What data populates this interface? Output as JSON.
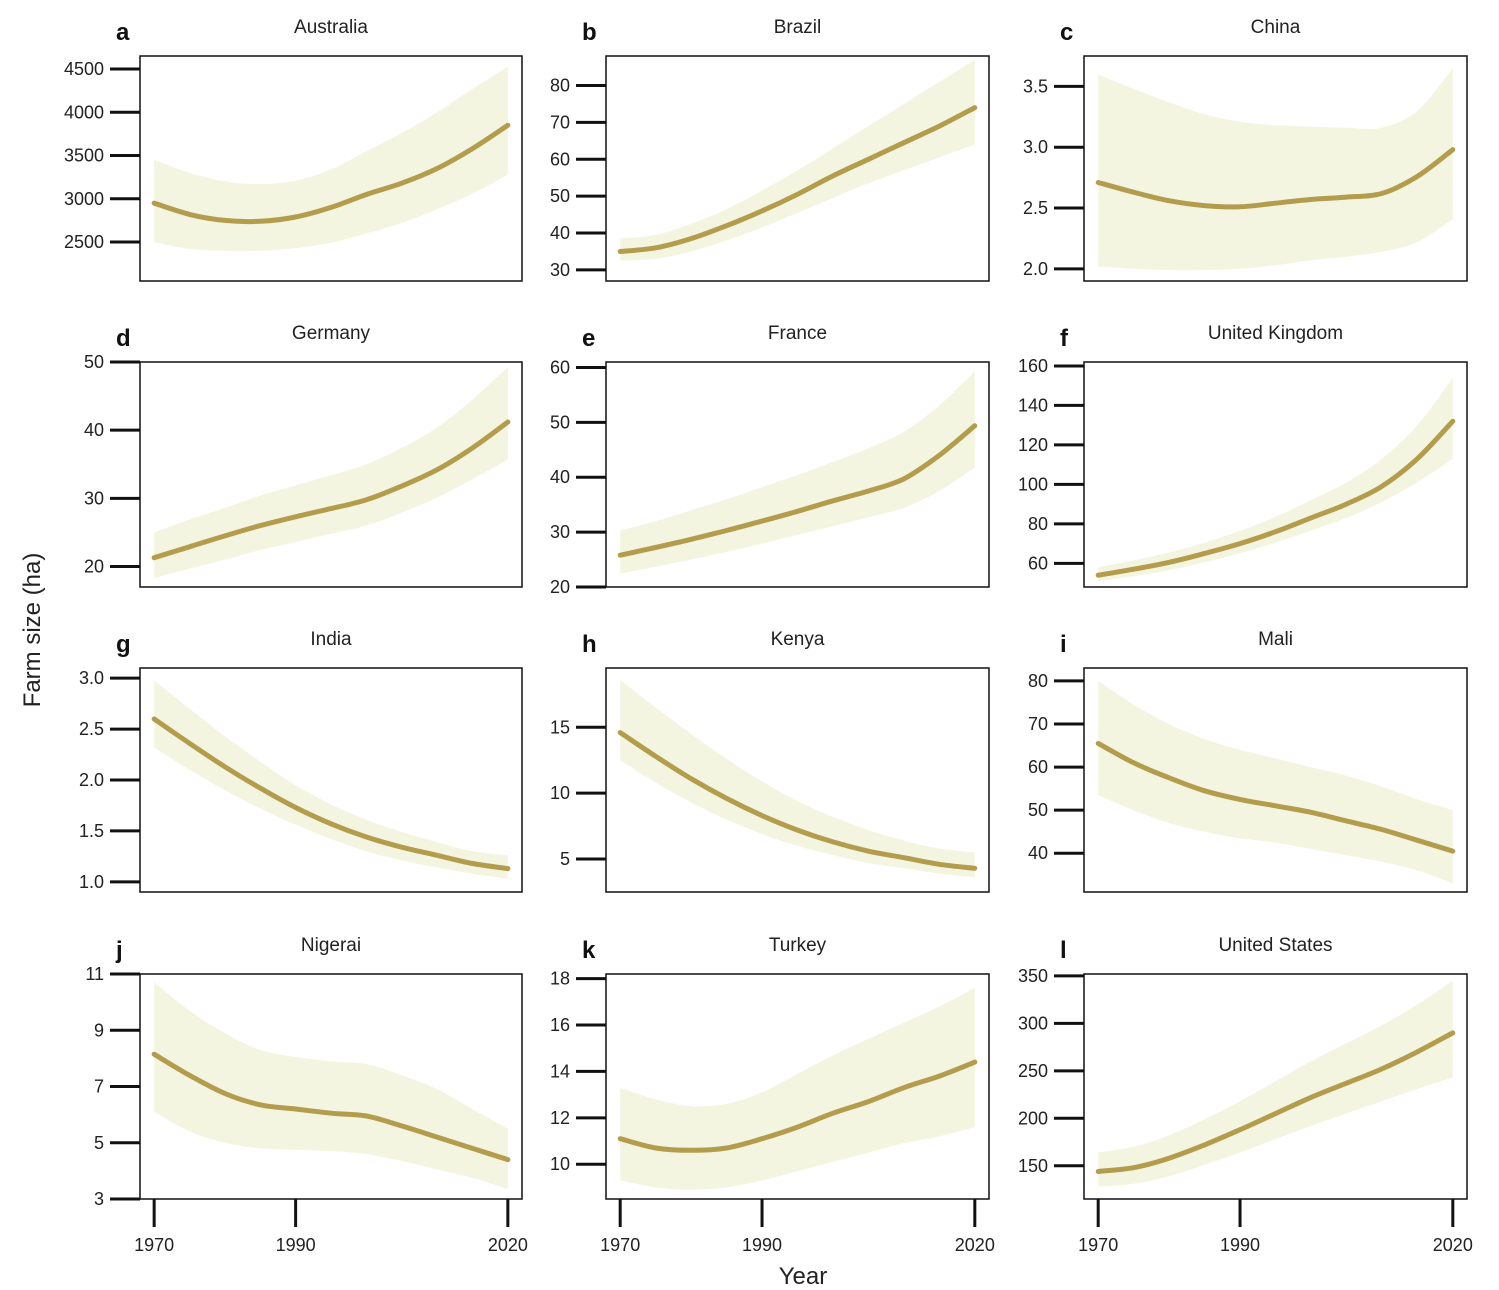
{
  "figure": {
    "ylabel": "Farm size (ha)",
    "xlabel": "Year"
  },
  "colors": {
    "line": "#b39d4d",
    "band": "#f4f5e1",
    "axis": "#111111"
  },
  "chart_data": [
    {
      "letter": "a",
      "title": "Australia",
      "type": "line",
      "xlabel": "",
      "ylabel": "",
      "x_ticks": [],
      "y_ticks": [
        2500,
        3000,
        3500,
        4000,
        4500
      ],
      "ylim": [
        2050,
        4650
      ],
      "xlim": [
        1968,
        2022
      ],
      "x": [
        1970,
        1975,
        1980,
        1985,
        1990,
        1995,
        2000,
        2005,
        2010,
        2015,
        2020
      ],
      "values": [
        2950,
        2820,
        2750,
        2740,
        2790,
        2900,
        3050,
        3180,
        3350,
        3580,
        3850
      ],
      "lower": [
        2500,
        2420,
        2400,
        2400,
        2430,
        2490,
        2600,
        2720,
        2880,
        3060,
        3280
      ],
      "upper": [
        3450,
        3300,
        3200,
        3170,
        3210,
        3340,
        3550,
        3760,
        4000,
        4270,
        4530
      ]
    },
    {
      "letter": "b",
      "title": "Brazil",
      "type": "line",
      "xlabel": "",
      "ylabel": "",
      "x_ticks": [],
      "y_ticks": [
        30,
        40,
        50,
        60,
        70,
        80
      ],
      "ylim": [
        27,
        88
      ],
      "xlim": [
        1968,
        2022
      ],
      "x": [
        1970,
        1975,
        1980,
        1985,
        1990,
        1995,
        2000,
        2005,
        2010,
        2015,
        2020
      ],
      "values": [
        35,
        36,
        38.5,
        42,
        46,
        50.5,
        55.5,
        60,
        64.5,
        69,
        74
      ],
      "lower": [
        32.5,
        33,
        35,
        38,
        41.5,
        45.5,
        49.5,
        53.5,
        57,
        60.5,
        64
      ],
      "upper": [
        38.5,
        39.5,
        42.5,
        46.5,
        51.5,
        57,
        63,
        69,
        75,
        81,
        87
      ]
    },
    {
      "letter": "c",
      "title": "China",
      "type": "line",
      "xlabel": "",
      "ylabel": "",
      "x_ticks": [],
      "y_ticks": [
        2.0,
        2.5,
        3.0,
        3.5
      ],
      "ylim": [
        1.9,
        3.75
      ],
      "xlim": [
        1968,
        2022
      ],
      "x": [
        1970,
        1975,
        1980,
        1985,
        1990,
        1995,
        2000,
        2005,
        2010,
        2015,
        2020
      ],
      "values": [
        2.71,
        2.63,
        2.56,
        2.52,
        2.51,
        2.54,
        2.57,
        2.59,
        2.62,
        2.76,
        2.98
      ],
      "lower": [
        2.02,
        2.0,
        1.99,
        1.99,
        2.0,
        2.03,
        2.07,
        2.1,
        2.14,
        2.22,
        2.41
      ],
      "upper": [
        3.6,
        3.48,
        3.37,
        3.27,
        3.21,
        3.18,
        3.17,
        3.16,
        3.16,
        3.3,
        3.65
      ]
    },
    {
      "letter": "d",
      "title": "Germany",
      "type": "line",
      "xlabel": "",
      "ylabel": "",
      "x_ticks": [],
      "y_ticks": [
        20,
        30,
        40,
        50
      ],
      "ylim": [
        17,
        50
      ],
      "xlim": [
        1968,
        2022
      ],
      "x": [
        1970,
        1975,
        1980,
        1985,
        1990,
        1995,
        2000,
        2005,
        2010,
        2015,
        2020
      ],
      "values": [
        21.3,
        22.9,
        24.5,
        26,
        27.3,
        28.5,
        29.8,
        31.8,
        34.2,
        37.4,
        41.2
      ],
      "lower": [
        18.3,
        19.7,
        21,
        22.4,
        23.6,
        24.8,
        26,
        27.9,
        30.1,
        32.8,
        35.7
      ],
      "upper": [
        25,
        26.9,
        28.6,
        30.4,
        31.9,
        33.4,
        35,
        37.4,
        40.4,
        44.5,
        49.3
      ]
    },
    {
      "letter": "e",
      "title": "France",
      "type": "line",
      "xlabel": "",
      "ylabel": "",
      "x_ticks": [],
      "y_ticks": [
        20,
        30,
        40,
        50,
        60
      ],
      "ylim": [
        20,
        61
      ],
      "xlim": [
        1968,
        2022
      ],
      "x": [
        1970,
        1975,
        1980,
        1985,
        1990,
        1995,
        2000,
        2005,
        2010,
        2015,
        2020
      ],
      "values": [
        25.8,
        27.2,
        28.7,
        30.3,
        32,
        33.8,
        35.7,
        37.5,
        39.7,
        44,
        49.4
      ],
      "lower": [
        22.4,
        23.7,
        25,
        26.4,
        27.9,
        29.5,
        31.1,
        32.7,
        34.4,
        37.5,
        41.8
      ],
      "upper": [
        30.3,
        32,
        34,
        36,
        38.2,
        40.4,
        42.8,
        45.3,
        48.3,
        53.1,
        59.3
      ]
    },
    {
      "letter": "f",
      "title": "United Kingdom",
      "type": "line",
      "xlabel": "",
      "ylabel": "",
      "x_ticks": [],
      "y_ticks": [
        60,
        80,
        100,
        120,
        140,
        160
      ],
      "ylim": [
        48,
        162
      ],
      "xlim": [
        1968,
        2022
      ],
      "x": [
        1970,
        1975,
        1980,
        1985,
        1990,
        1995,
        2000,
        2005,
        2010,
        2015,
        2020
      ],
      "values": [
        54,
        57,
        60.5,
        65,
        70,
        76,
        83,
        90,
        99,
        113,
        132
      ],
      "lower": [
        51,
        53.5,
        56.5,
        60.5,
        65,
        70.5,
        76.5,
        83,
        91,
        101,
        113
      ],
      "upper": [
        58,
        61.5,
        65.5,
        70.5,
        76.5,
        83.5,
        92,
        101,
        113,
        130,
        154
      ]
    },
    {
      "letter": "g",
      "title": "India",
      "type": "line",
      "xlabel": "",
      "ylabel": "",
      "x_ticks": [],
      "y_ticks": [
        1.0,
        1.5,
        2.0,
        2.5,
        3.0
      ],
      "ylim": [
        0.9,
        3.1
      ],
      "xlim": [
        1968,
        2022
      ],
      "x": [
        1970,
        1975,
        1980,
        1985,
        1990,
        1995,
        2000,
        2005,
        2010,
        2015,
        2020
      ],
      "values": [
        2.6,
        2.36,
        2.13,
        1.92,
        1.73,
        1.57,
        1.44,
        1.34,
        1.26,
        1.18,
        1.13
      ],
      "lower": [
        2.32,
        2.1,
        1.9,
        1.72,
        1.56,
        1.42,
        1.3,
        1.21,
        1.14,
        1.08,
        1.03
      ],
      "upper": [
        2.98,
        2.7,
        2.43,
        2.18,
        1.95,
        1.76,
        1.61,
        1.49,
        1.39,
        1.3,
        1.26
      ]
    },
    {
      "letter": "h",
      "title": "Kenya",
      "type": "line",
      "xlabel": "",
      "ylabel": "",
      "x_ticks": [],
      "y_ticks": [
        5,
        10,
        15
      ],
      "ylim": [
        2.5,
        19.5
      ],
      "xlim": [
        1968,
        2022
      ],
      "x": [
        1970,
        1975,
        1980,
        1985,
        1990,
        1995,
        2000,
        2005,
        2010,
        2015,
        2020
      ],
      "values": [
        14.6,
        12.8,
        11.1,
        9.6,
        8.3,
        7.2,
        6.3,
        5.6,
        5.1,
        4.6,
        4.3
      ],
      "lower": [
        12.5,
        10.8,
        9.3,
        8,
        6.9,
        6,
        5.3,
        4.7,
        4.3,
        3.9,
        3.6
      ],
      "upper": [
        18.6,
        16.5,
        14.5,
        12.6,
        10.9,
        9.4,
        8.2,
        7.2,
        6.4,
        5.8,
        5.5
      ]
    },
    {
      "letter": "i",
      "title": "Mali",
      "type": "line",
      "xlabel": "",
      "ylabel": "",
      "x_ticks": [],
      "y_ticks": [
        40,
        50,
        60,
        70,
        80
      ],
      "ylim": [
        31,
        83
      ],
      "xlim": [
        1968,
        2022
      ],
      "x": [
        1970,
        1975,
        1980,
        1985,
        1990,
        1995,
        2000,
        2005,
        2010,
        2015,
        2020
      ],
      "values": [
        65.5,
        61,
        57.5,
        54.5,
        52.5,
        51,
        49.5,
        47.5,
        45.5,
        43,
        40.5
      ],
      "lower": [
        53.5,
        50,
        47,
        45,
        43.5,
        42.5,
        41,
        39.5,
        38,
        36,
        33
      ],
      "upper": [
        80,
        74.5,
        70,
        66.5,
        64,
        62,
        60,
        58,
        55.5,
        52.5,
        50
      ]
    },
    {
      "letter": "j",
      "title": "Nigerai",
      "type": "line",
      "xlabel": "",
      "ylabel": "",
      "x_ticks": [
        "1970",
        "1990",
        "2020"
      ],
      "y_ticks": [
        3,
        5,
        7,
        9,
        11
      ],
      "ylim": [
        3,
        11
      ],
      "xlim": [
        1968,
        2022
      ],
      "x": [
        1970,
        1975,
        1980,
        1985,
        1990,
        1995,
        2000,
        2005,
        2010,
        2015,
        2020
      ],
      "values": [
        8.15,
        7.4,
        6.75,
        6.35,
        6.2,
        6.05,
        5.95,
        5.6,
        5.2,
        4.8,
        4.4
      ],
      "lower": [
        6.1,
        5.4,
        5,
        4.8,
        4.75,
        4.7,
        4.6,
        4.35,
        4.05,
        3.75,
        3.35
      ],
      "upper": [
        10.7,
        9.7,
        8.9,
        8.3,
        8.05,
        7.9,
        7.8,
        7.4,
        6.9,
        6.2,
        5.5
      ]
    },
    {
      "letter": "k",
      "title": "Turkey",
      "type": "line",
      "xlabel": "",
      "ylabel": "",
      "x_ticks": [
        "1970",
        "1990",
        "2020"
      ],
      "y_ticks": [
        10,
        12,
        14,
        16,
        18
      ],
      "ylim": [
        8.5,
        18.2
      ],
      "xlim": [
        1968,
        2022
      ],
      "x": [
        1970,
        1975,
        1980,
        1985,
        1990,
        1995,
        2000,
        2005,
        2010,
        2015,
        2020
      ],
      "values": [
        11.1,
        10.7,
        10.6,
        10.7,
        11.1,
        11.6,
        12.2,
        12.7,
        13.3,
        13.8,
        14.4
      ],
      "lower": [
        9.3,
        9,
        8.9,
        9,
        9.3,
        9.7,
        10.1,
        10.5,
        10.9,
        11.2,
        11.6
      ],
      "upper": [
        13.3,
        12.8,
        12.5,
        12.6,
        13.1,
        13.9,
        14.7,
        15.4,
        16.1,
        16.8,
        17.6
      ]
    },
    {
      "letter": "l",
      "title": "United States",
      "type": "line",
      "xlabel": "",
      "ylabel": "",
      "x_ticks": [
        "1970",
        "1990",
        "2020"
      ],
      "y_ticks": [
        150,
        200,
        250,
        300,
        350
      ],
      "ylim": [
        115,
        352
      ],
      "xlim": [
        1968,
        2022
      ],
      "x": [
        1970,
        1975,
        1980,
        1985,
        1990,
        1995,
        2000,
        2005,
        2010,
        2015,
        2020
      ],
      "values": [
        144,
        148,
        158,
        172,
        188,
        205,
        222,
        237,
        252,
        270,
        290
      ],
      "lower": [
        128,
        131,
        139,
        151,
        164,
        178,
        192,
        205,
        218,
        231,
        243
      ],
      "upper": [
        164,
        170,
        182,
        199,
        218,
        239,
        260,
        279,
        298,
        320,
        345
      ]
    }
  ]
}
